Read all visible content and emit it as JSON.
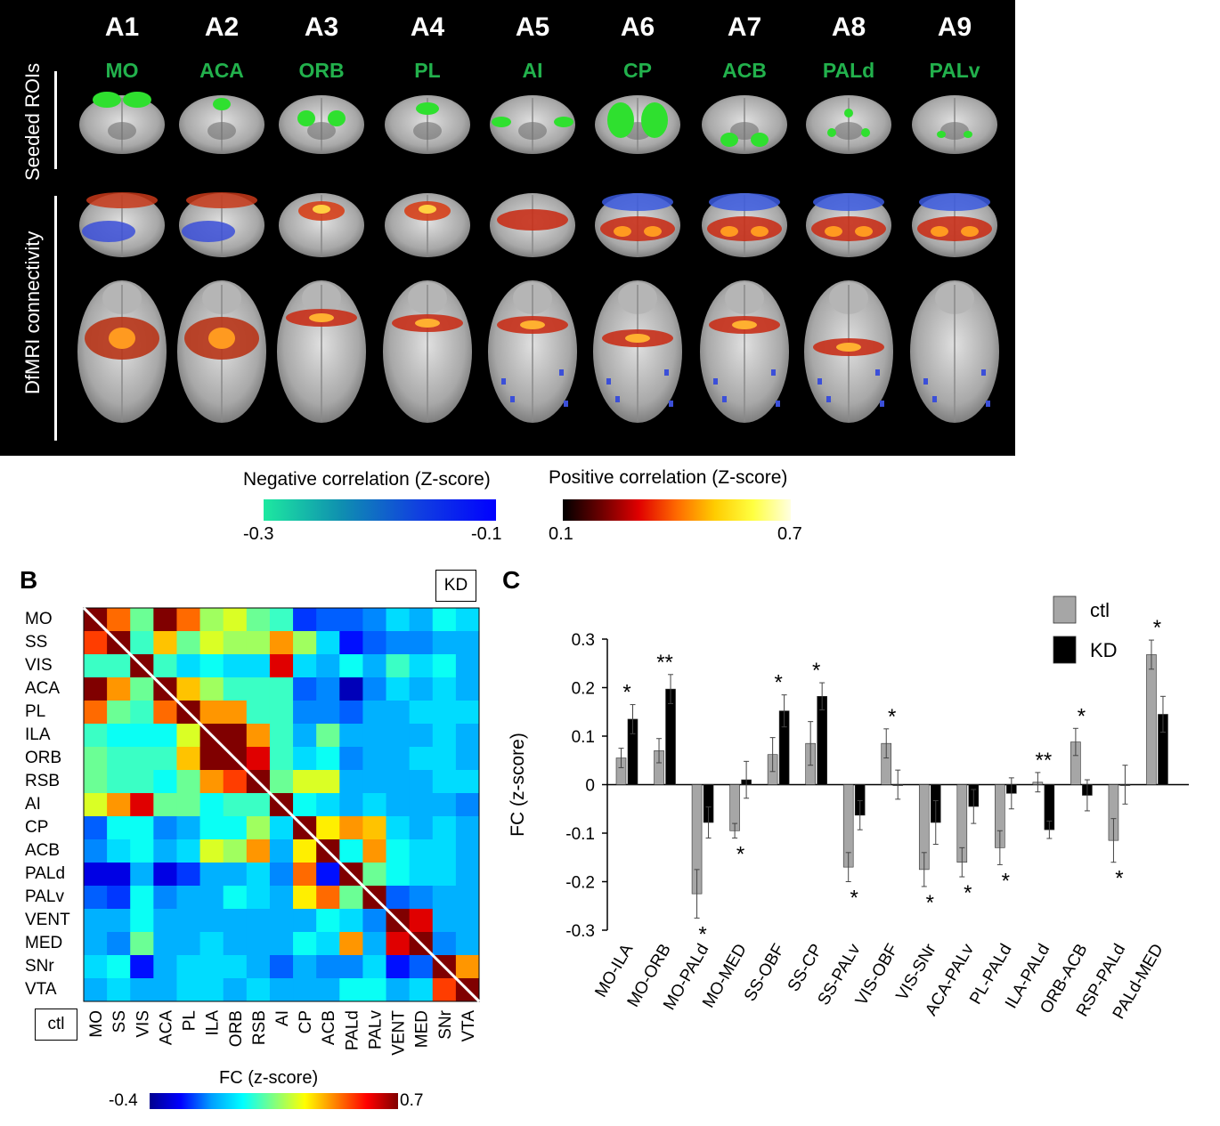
{
  "panel_a": {
    "row_labels": [
      "Seeded ROIs",
      "DfMRI connectivity"
    ],
    "columns": [
      {
        "id": "A1",
        "roi": "MO"
      },
      {
        "id": "A2",
        "roi": "ACA"
      },
      {
        "id": "A3",
        "roi": "ORB"
      },
      {
        "id": "A4",
        "roi": "PL"
      },
      {
        "id": "A5",
        "roi": "AI"
      },
      {
        "id": "A6",
        "roi": "CP"
      },
      {
        "id": "A7",
        "roi": "ACB"
      },
      {
        "id": "A8",
        "roi": "PALd"
      },
      {
        "id": "A9",
        "roi": "PALv"
      }
    ],
    "neg_colorbar": {
      "title": "Negative correlation (Z-score)",
      "min": "-0.3",
      "max": "-0.1"
    },
    "pos_colorbar": {
      "title": "Positive correlation (Z-score)",
      "min": "0.1",
      "max": "0.7"
    }
  },
  "panel_b": {
    "letter": "B",
    "upper_label": "KD",
    "lower_label": "ctl",
    "colorbar": {
      "title": "FC (z-score)",
      "min": "-0.4",
      "max": "0.7"
    }
  },
  "panel_c": {
    "letter": "C"
  },
  "chart_data": [
    {
      "type": "heatmap",
      "labels": [
        "MO",
        "SS",
        "VIS",
        "ACA",
        "PL",
        "ILA",
        "ORB",
        "RSB",
        "AI",
        "CP",
        "ACB",
        "PALd",
        "PALv",
        "VENT",
        "MED",
        "SNr",
        "VTA"
      ],
      "range": [
        -0.4,
        0.7
      ],
      "note_upper": "KD",
      "note_lower": "ctl",
      "values": [
        [
          0.7,
          0.45,
          0.15,
          0.7,
          0.45,
          0.2,
          0.25,
          0.15,
          0.1,
          -0.2,
          -0.15,
          -0.15,
          -0.1,
          0.0,
          -0.05,
          0.05,
          0.0
        ],
        [
          0.5,
          0.7,
          0.1,
          0.35,
          0.15,
          0.25,
          0.2,
          0.2,
          0.4,
          0.2,
          0.0,
          -0.25,
          -0.15,
          -0.1,
          -0.1,
          -0.05,
          -0.05
        ],
        [
          0.1,
          0.1,
          0.7,
          0.1,
          0.0,
          0.05,
          0.0,
          0.0,
          0.6,
          0.0,
          -0.05,
          0.05,
          -0.05,
          0.1,
          0.0,
          0.05,
          -0.05
        ],
        [
          0.7,
          0.4,
          0.15,
          0.7,
          0.35,
          0.2,
          0.1,
          0.1,
          0.1,
          -0.15,
          -0.1,
          -0.35,
          -0.1,
          0.0,
          -0.05,
          0.0,
          -0.05
        ],
        [
          0.45,
          0.15,
          0.1,
          0.45,
          0.7,
          0.4,
          0.4,
          0.1,
          0.1,
          -0.1,
          -0.1,
          -0.15,
          -0.05,
          -0.05,
          0.0,
          0.0,
          0.0
        ],
        [
          0.1,
          0.05,
          0.05,
          0.05,
          0.25,
          0.7,
          0.7,
          0.4,
          0.1,
          -0.05,
          0.15,
          -0.05,
          -0.05,
          -0.05,
          -0.05,
          0.0,
          -0.05
        ],
        [
          0.15,
          0.1,
          0.1,
          0.1,
          0.35,
          0.7,
          0.7,
          0.6,
          0.1,
          0.0,
          0.05,
          -0.1,
          -0.05,
          -0.05,
          0.0,
          0.0,
          -0.05
        ],
        [
          0.15,
          0.1,
          0.1,
          0.05,
          0.15,
          0.4,
          0.5,
          0.7,
          0.15,
          0.25,
          0.25,
          -0.05,
          -0.05,
          -0.05,
          -0.05,
          0.0,
          0.0
        ],
        [
          0.25,
          0.4,
          0.6,
          0.15,
          0.15,
          0.05,
          0.1,
          0.1,
          0.7,
          0.05,
          0.0,
          -0.05,
          0.0,
          -0.05,
          -0.05,
          -0.05,
          -0.1
        ],
        [
          -0.15,
          0.05,
          0.05,
          -0.1,
          -0.05,
          0.05,
          0.05,
          0.2,
          0.0,
          0.7,
          0.3,
          0.4,
          0.35,
          0.0,
          -0.05,
          0.0,
          -0.05
        ],
        [
          -0.1,
          0.0,
          0.05,
          -0.05,
          0.0,
          0.25,
          0.2,
          0.4,
          -0.05,
          0.3,
          0.7,
          0.05,
          0.4,
          0.05,
          0.0,
          0.0,
          -0.05
        ],
        [
          -0.3,
          -0.3,
          -0.05,
          -0.3,
          -0.2,
          -0.05,
          -0.05,
          0.0,
          -0.1,
          0.45,
          -0.25,
          0.7,
          0.15,
          0.05,
          0.0,
          0.0,
          -0.05
        ],
        [
          -0.15,
          -0.2,
          0.05,
          -0.1,
          -0.05,
          -0.05,
          0.05,
          0.0,
          -0.05,
          0.3,
          0.45,
          0.15,
          0.7,
          -0.15,
          -0.1,
          -0.05,
          -0.05
        ],
        [
          -0.05,
          -0.05,
          0.05,
          -0.05,
          -0.05,
          -0.05,
          -0.05,
          -0.05,
          -0.05,
          -0.05,
          0.05,
          0.0,
          -0.1,
          0.7,
          0.6,
          -0.05,
          -0.05
        ],
        [
          -0.05,
          -0.1,
          0.15,
          -0.05,
          -0.05,
          0.0,
          -0.05,
          -0.05,
          -0.05,
          0.05,
          0.0,
          0.4,
          -0.05,
          0.6,
          0.7,
          -0.1,
          -0.05
        ],
        [
          0.0,
          0.05,
          -0.25,
          -0.05,
          0.0,
          0.0,
          0.0,
          -0.05,
          -0.15,
          -0.05,
          -0.1,
          -0.1,
          0.0,
          -0.25,
          -0.15,
          0.7,
          0.4
        ],
        [
          -0.05,
          0.0,
          -0.05,
          -0.05,
          0.0,
          0.0,
          -0.05,
          0.0,
          -0.05,
          -0.05,
          -0.05,
          0.05,
          0.05,
          -0.05,
          0.0,
          0.5,
          0.7
        ]
      ]
    },
    {
      "type": "bar",
      "title": "",
      "xlabel": "",
      "ylabel": "FC (z-score)",
      "ylim": [
        -0.3,
        0.3
      ],
      "yticks": [
        "0.3",
        "0.2",
        "0.1",
        "0",
        "-0.1",
        "-0.2",
        "-0.3"
      ],
      "legend_position": "top-right",
      "categories": [
        "MO-ILA",
        "MO-ORB",
        "MO-PALd",
        "MO-MED",
        "SS-OBF",
        "SS-CP",
        "SS-PALv",
        "VIS-OBF",
        "VIS-SNr",
        "ACA-PALv",
        "PL-PALd",
        "ILA-PALd",
        "ORB-ACB",
        "RSP-PALd",
        "PALd-MED"
      ],
      "series": [
        {
          "name": "ctl",
          "color": "#a6a6a6",
          "values": [
            0.055,
            0.07,
            -0.225,
            -0.095,
            0.062,
            0.085,
            -0.17,
            0.085,
            -0.175,
            -0.16,
            -0.13,
            0.005,
            0.088,
            -0.115,
            0.268
          ],
          "errors": [
            0.02,
            0.025,
            0.05,
            0.015,
            0.035,
            0.045,
            0.03,
            0.03,
            0.035,
            0.03,
            0.035,
            0.02,
            0.028,
            0.045,
            0.03
          ]
        },
        {
          "name": "KD",
          "color": "#000000",
          "values": [
            0.135,
            0.197,
            -0.078,
            0.01,
            0.152,
            0.182,
            -0.063,
            0.0,
            -0.078,
            -0.045,
            -0.018,
            -0.093,
            -0.022,
            0.0,
            0.145
          ],
          "errors": [
            0.03,
            0.03,
            0.032,
            0.038,
            0.033,
            0.028,
            0.03,
            0.03,
            0.045,
            0.035,
            0.032,
            0.018,
            0.032,
            0.04,
            0.037
          ]
        }
      ],
      "significance": [
        "*",
        "**",
        "*",
        "*",
        "*",
        "*",
        "*",
        "*",
        "*",
        "*",
        "*",
        "**",
        "*",
        "*",
        "*"
      ]
    }
  ]
}
